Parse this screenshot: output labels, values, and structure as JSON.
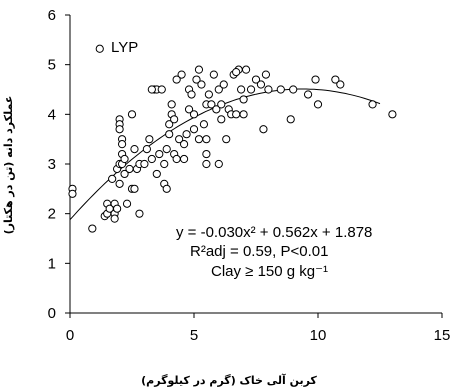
{
  "chart_data": {
    "type": "scatter",
    "xlabel": "کربن آلی خاک (گرم در کیلوگرم)",
    "ylabel": "عملکرد دانه (تن در هکتار)",
    "xlim": [
      0,
      15
    ],
    "ylim": [
      0,
      6
    ],
    "x_ticks": [
      "0",
      "5",
      "10",
      "15"
    ],
    "y_ticks": [
      "0",
      "1",
      "2",
      "3",
      "4",
      "5",
      "6"
    ],
    "grid": false,
    "legend": "none",
    "annotation": {
      "label": "LYP",
      "x": 1.2,
      "y": 5.32
    },
    "fit": {
      "a": -0.03,
      "b": 0.562,
      "c": 1.878,
      "equation_line1": "y = -0.030x² + 0.562x + 1.878",
      "equation_line2": "R²adj = 0.59, P<0.01",
      "equation_line3": "Clay ≥ 150 g kg⁻¹",
      "x_range": [
        0,
        12.5
      ]
    },
    "points": [
      [
        0.1,
        2.5
      ],
      [
        0.1,
        2.4
      ],
      [
        0.9,
        1.7
      ],
      [
        1.4,
        1.95
      ],
      [
        1.5,
        2.0
      ],
      [
        1.5,
        2.2
      ],
      [
        1.6,
        2.1
      ],
      [
        1.7,
        2.7
      ],
      [
        1.8,
        2.0
      ],
      [
        1.8,
        2.2
      ],
      [
        1.8,
        1.9
      ],
      [
        1.9,
        2.1
      ],
      [
        1.9,
        2.9
      ],
      [
        2.0,
        3.0
      ],
      [
        2.0,
        2.6
      ],
      [
        2.0,
        3.9
      ],
      [
        2.0,
        3.8
      ],
      [
        2.0,
        3.7
      ],
      [
        2.1,
        3.5
      ],
      [
        2.1,
        3.4
      ],
      [
        2.1,
        3.2
      ],
      [
        2.1,
        3.0
      ],
      [
        2.2,
        3.1
      ],
      [
        2.2,
        2.8
      ],
      [
        2.3,
        2.2
      ],
      [
        2.4,
        2.9
      ],
      [
        2.5,
        2.5
      ],
      [
        2.5,
        4.0
      ],
      [
        2.6,
        2.5
      ],
      [
        2.6,
        3.3
      ],
      [
        2.7,
        2.9
      ],
      [
        2.8,
        2.0
      ],
      [
        2.8,
        3.0
      ],
      [
        3.0,
        3.0
      ],
      [
        3.1,
        3.3
      ],
      [
        3.2,
        3.5
      ],
      [
        3.3,
        3.1
      ],
      [
        3.4,
        4.5
      ],
      [
        3.5,
        2.8
      ],
      [
        3.5,
        4.5
      ],
      [
        3.6,
        3.2
      ],
      [
        3.7,
        4.5
      ],
      [
        3.8,
        3.0
      ],
      [
        3.8,
        2.6
      ],
      [
        3.9,
        3.3
      ],
      [
        3.9,
        2.5
      ],
      [
        4.0,
        3.8
      ],
      [
        4.0,
        3.6
      ],
      [
        4.1,
        4.2
      ],
      [
        4.1,
        4.0
      ],
      [
        4.2,
        3.2
      ],
      [
        4.2,
        3.9
      ],
      [
        4.3,
        3.1
      ],
      [
        4.4,
        3.5
      ],
      [
        4.5,
        4.8
      ],
      [
        4.6,
        3.4
      ],
      [
        4.6,
        3.1
      ],
      [
        4.7,
        3.6
      ],
      [
        4.8,
        4.5
      ],
      [
        4.8,
        4.1
      ],
      [
        4.9,
        4.4
      ],
      [
        5.0,
        3.7
      ],
      [
        5.0,
        4.0
      ],
      [
        5.1,
        4.7
      ],
      [
        5.2,
        3.5
      ],
      [
        5.3,
        4.6
      ],
      [
        5.4,
        3.8
      ],
      [
        5.5,
        4.2
      ],
      [
        5.5,
        3.5
      ],
      [
        5.5,
        3.2
      ],
      [
        5.5,
        3.0
      ],
      [
        5.6,
        4.4
      ],
      [
        5.7,
        4.2
      ],
      [
        5.8,
        4.8
      ],
      [
        5.9,
        4.1
      ],
      [
        6.0,
        3.0
      ],
      [
        6.0,
        4.5
      ],
      [
        6.1,
        4.2
      ],
      [
        6.2,
        4.6
      ],
      [
        6.3,
        3.5
      ],
      [
        6.4,
        4.1
      ],
      [
        6.5,
        4.0
      ],
      [
        6.6,
        4.8
      ],
      [
        6.7,
        4.0
      ],
      [
        6.8,
        4.9
      ],
      [
        6.9,
        4.5
      ],
      [
        7.0,
        4.3
      ],
      [
        7.0,
        4.0
      ],
      [
        7.1,
        4.9
      ],
      [
        7.3,
        4.5
      ],
      [
        7.5,
        4.7
      ],
      [
        7.7,
        4.6
      ],
      [
        7.8,
        3.7
      ],
      [
        7.9,
        4.8
      ],
      [
        8.0,
        4.5
      ],
      [
        8.5,
        4.5
      ],
      [
        8.9,
        3.9
      ],
      [
        9.0,
        4.5
      ],
      [
        9.6,
        4.4
      ],
      [
        9.9,
        4.7
      ],
      [
        10.0,
        4.2
      ],
      [
        10.7,
        4.7
      ],
      [
        10.9,
        4.6
      ],
      [
        12.2,
        4.2
      ],
      [
        13.0,
        4.0
      ],
      [
        6.7,
        4.85
      ],
      [
        3.3,
        4.5
      ],
      [
        4.3,
        4.7
      ],
      [
        5.2,
        4.9
      ],
      [
        6.1,
        3.9
      ]
    ]
  }
}
